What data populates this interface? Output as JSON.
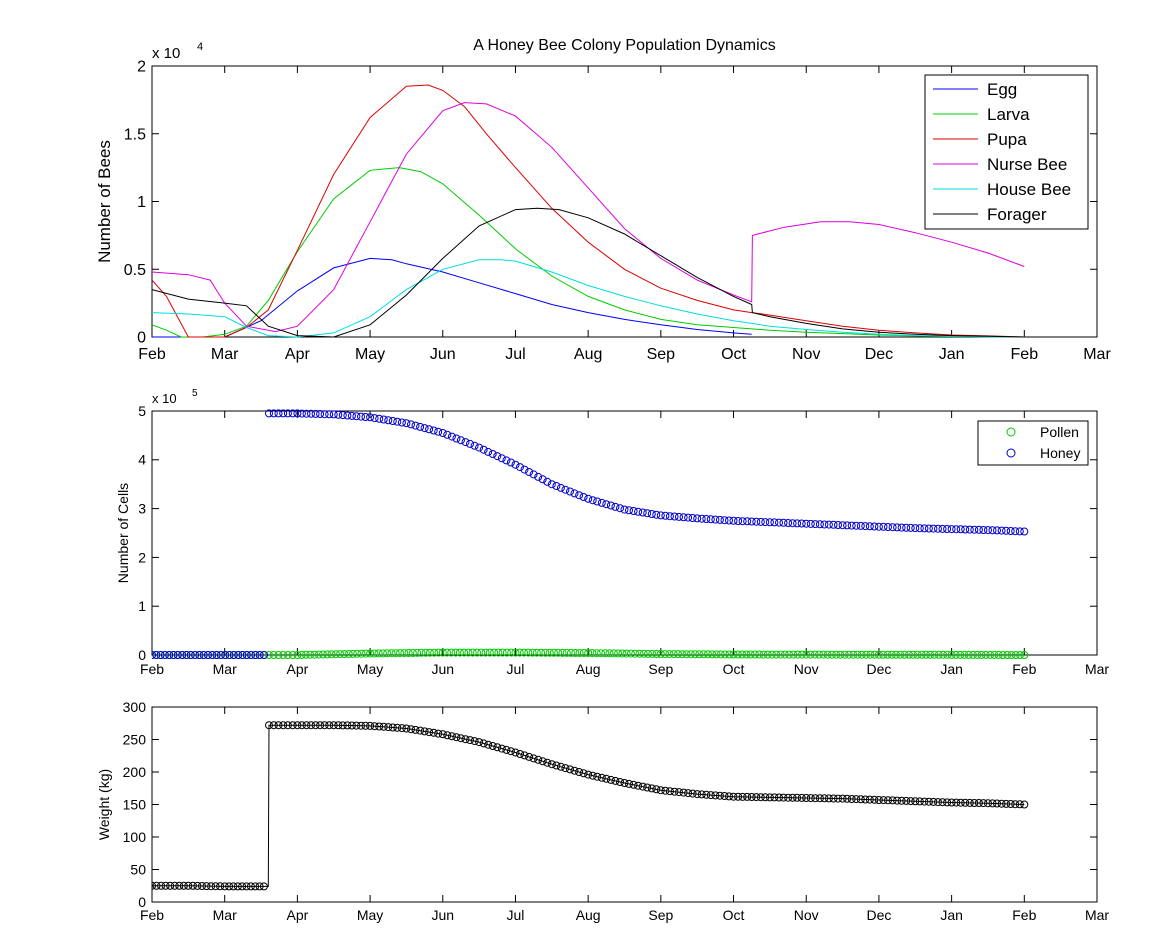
{
  "figure": {
    "background": "#ffffff"
  },
  "chart_data": [
    {
      "type": "line",
      "title": "A Honey Bee Colony Population Dynamics",
      "xlabel": "",
      "ylabel": "Number of Bees",
      "y_exponent_label": "x 10",
      "y_exponent_power": "4",
      "x_tick_labels": [
        "Feb",
        "Mar",
        "Apr",
        "May",
        "Jun",
        "Jul",
        "Aug",
        "Sep",
        "Oct",
        "Nov",
        "Dec",
        "Jan",
        "Feb",
        "Mar"
      ],
      "xlim": [
        0,
        13
      ],
      "ylim": [
        0,
        20000
      ],
      "y_ticks": [
        0,
        5000,
        10000,
        15000,
        20000
      ],
      "y_tick_labels": [
        "0",
        "0.5",
        "1",
        "1.5",
        "2"
      ],
      "grid": false,
      "legend_position": "top-right",
      "series": [
        {
          "name": "Egg",
          "color": "#0000ff",
          "x": [
            0,
            0.5,
            1,
            1.5,
            2,
            2.5,
            3,
            3.3,
            3.5,
            4,
            4.5,
            5,
            5.5,
            6,
            6.5,
            7,
            7.5,
            8,
            8.25
          ],
          "y": [
            0,
            0,
            0,
            1200,
            3400,
            5100,
            5800,
            5700,
            5400,
            4800,
            4000,
            3200,
            2400,
            1800,
            1300,
            900,
            550,
            300,
            200
          ]
        },
        {
          "name": "Larva",
          "color": "#00cc00",
          "x": [
            0,
            0.2,
            0.4,
            0.7,
            1,
            1.3,
            1.6,
            2,
            2.5,
            3,
            3.4,
            3.7,
            4,
            4.5,
            5,
            5.5,
            6,
            6.5,
            7,
            7.5,
            8,
            8.25,
            8.5,
            9,
            9.5,
            10,
            10.5,
            11,
            11.5,
            12
          ],
          "y": [
            900,
            500,
            0,
            0,
            200,
            800,
            2700,
            6300,
            10200,
            12300,
            12500,
            12200,
            11300,
            9000,
            6500,
            4500,
            3000,
            2000,
            1300,
            900,
            700,
            600,
            500,
            350,
            250,
            150,
            80,
            40,
            20,
            0
          ]
        },
        {
          "name": "Pupa",
          "color": "#dd0000",
          "x": [
            0,
            0.2,
            0.5,
            1,
            1.3,
            1.6,
            2,
            2.5,
            3,
            3.5,
            3.8,
            4,
            4.3,
            4.6,
            5,
            5.5,
            6,
            6.5,
            7,
            7.5,
            8,
            8.25,
            8.4,
            9,
            9.5,
            10,
            10.5,
            11,
            11.5,
            12
          ],
          "y": [
            4200,
            3000,
            0,
            0,
            700,
            2000,
            6400,
            12000,
            16200,
            18500,
            18600,
            18200,
            17000,
            15000,
            12500,
            9500,
            7000,
            5000,
            3600,
            2700,
            2000,
            1800,
            1700,
            1200,
            800,
            500,
            300,
            150,
            80,
            0
          ]
        },
        {
          "name": "Nurse Bee",
          "color": "#dd00dd",
          "x": [
            0,
            0.5,
            0.8,
            1,
            1.3,
            1.7,
            2,
            2.5,
            3,
            3.5,
            4,
            4.3,
            4.6,
            5,
            5.5,
            6,
            6.5,
            7,
            7.5,
            8,
            8.25,
            8.26,
            8.7,
            9.2,
            9.6,
            10,
            10.5,
            11,
            11.5,
            12
          ],
          "y": [
            4800,
            4600,
            4200,
            2500,
            800,
            400,
            800,
            3500,
            8500,
            13500,
            16700,
            17300,
            17200,
            16300,
            14000,
            11000,
            8000,
            5800,
            4200,
            3100,
            2600,
            7500,
            8100,
            8500,
            8500,
            8300,
            7700,
            7000,
            6200,
            5200
          ]
        },
        {
          "name": "House Bee",
          "color": "#00dddd",
          "x": [
            0,
            0.5,
            1,
            1.3,
            1.6,
            2,
            2.5,
            3,
            3.5,
            4,
            4.5,
            4.8,
            5,
            5.5,
            6,
            6.5,
            7,
            7.5,
            8,
            8.25,
            8.5,
            9,
            9.5,
            10,
            10.5,
            11,
            11.5,
            12
          ],
          "y": [
            1800,
            1700,
            1500,
            700,
            100,
            0,
            300,
            1500,
            3500,
            5000,
            5700,
            5700,
            5600,
            4800,
            3800,
            3000,
            2300,
            1700,
            1200,
            1000,
            800,
            550,
            350,
            200,
            100,
            50,
            20,
            0
          ]
        },
        {
          "name": "Forager",
          "color": "#000000",
          "x": [
            0,
            0.5,
            1,
            1.3,
            1.6,
            2,
            2.5,
            3,
            3.5,
            4,
            4.5,
            5,
            5.3,
            5.6,
            6,
            6.5,
            7,
            7.5,
            8,
            8.25,
            8.26,
            8.5,
            9,
            9.5,
            10,
            10.5,
            11,
            11.5,
            12
          ],
          "y": [
            3500,
            2800,
            2500,
            2300,
            800,
            100,
            0,
            900,
            3100,
            5800,
            8200,
            9400,
            9500,
            9400,
            8800,
            7600,
            6000,
            4400,
            3000,
            2400,
            1800,
            1500,
            1000,
            600,
            350,
            200,
            100,
            50,
            0
          ]
        }
      ]
    },
    {
      "type": "scatter",
      "title": "",
      "xlabel": "",
      "ylabel": "Number of Cells",
      "y_exponent_label": "x 10",
      "y_exponent_power": "5",
      "x_tick_labels": [
        "Feb",
        "Mar",
        "Apr",
        "May",
        "Jun",
        "Jul",
        "Aug",
        "Sep",
        "Oct",
        "Nov",
        "Dec",
        "Jan",
        "Feb",
        "Mar"
      ],
      "xlim": [
        0,
        13
      ],
      "ylim": [
        0,
        500000
      ],
      "y_ticks": [
        0,
        100000,
        200000,
        300000,
        400000,
        500000
      ],
      "y_tick_labels": [
        "0",
        "1",
        "2",
        "3",
        "4",
        "5"
      ],
      "grid": false,
      "legend_position": "top-right",
      "series": [
        {
          "name": "Pollen",
          "color": "#00cc00",
          "marker": "circle",
          "x": [
            0,
            1.6,
            1.61,
            2,
            3,
            4,
            5,
            6,
            7,
            8,
            9,
            10,
            11,
            12
          ],
          "y": [
            0,
            0,
            0,
            0,
            3000,
            5000,
            5000,
            4000,
            2000,
            1000,
            800,
            500,
            300,
            0
          ]
        },
        {
          "name": "Honey",
          "color": "#0000cc",
          "marker": "circle",
          "x": [
            0,
            1.6,
            1.61,
            2,
            2.5,
            3,
            3.5,
            4,
            4.5,
            5,
            5.5,
            6,
            6.5,
            7,
            7.5,
            8,
            8.5,
            9,
            9.5,
            10,
            10.5,
            11,
            11.5,
            12
          ],
          "y": [
            0,
            0,
            495000,
            495000,
            493000,
            487000,
            475000,
            455000,
            425000,
            390000,
            350000,
            320000,
            298000,
            286000,
            280000,
            275000,
            272000,
            269000,
            266000,
            263000,
            260000,
            258000,
            256000,
            253000
          ]
        }
      ]
    },
    {
      "type": "scatter",
      "title": "",
      "xlabel": "",
      "ylabel": "Weight (kg)",
      "x_tick_labels": [
        "Feb",
        "Mar",
        "Apr",
        "May",
        "Jun",
        "Jul",
        "Aug",
        "Sep",
        "Oct",
        "Nov",
        "Dec",
        "Jan",
        "Feb",
        "Mar"
      ],
      "xlim": [
        0,
        13
      ],
      "ylim": [
        0,
        300
      ],
      "y_ticks": [
        0,
        50,
        100,
        150,
        200,
        250,
        300
      ],
      "y_tick_labels": [
        "0",
        "50",
        "100",
        "150",
        "200",
        "250",
        "300"
      ],
      "grid": false,
      "legend_position": "",
      "series": [
        {
          "color": "#000000",
          "marker": "circle",
          "x": [
            0,
            0.5,
            1,
            1.6,
            1.61,
            2,
            2.5,
            3,
            3.5,
            4,
            4.5,
            5,
            5.5,
            6,
            6.5,
            7,
            7.5,
            8,
            8.5,
            9,
            9.5,
            10,
            10.5,
            11,
            11.5,
            12
          ],
          "y": [
            25,
            25,
            24,
            24,
            272,
            272,
            272,
            271,
            267,
            258,
            246,
            230,
            212,
            196,
            183,
            172,
            166,
            162,
            161,
            160,
            159,
            157,
            155,
            153,
            152,
            150
          ]
        }
      ]
    }
  ]
}
